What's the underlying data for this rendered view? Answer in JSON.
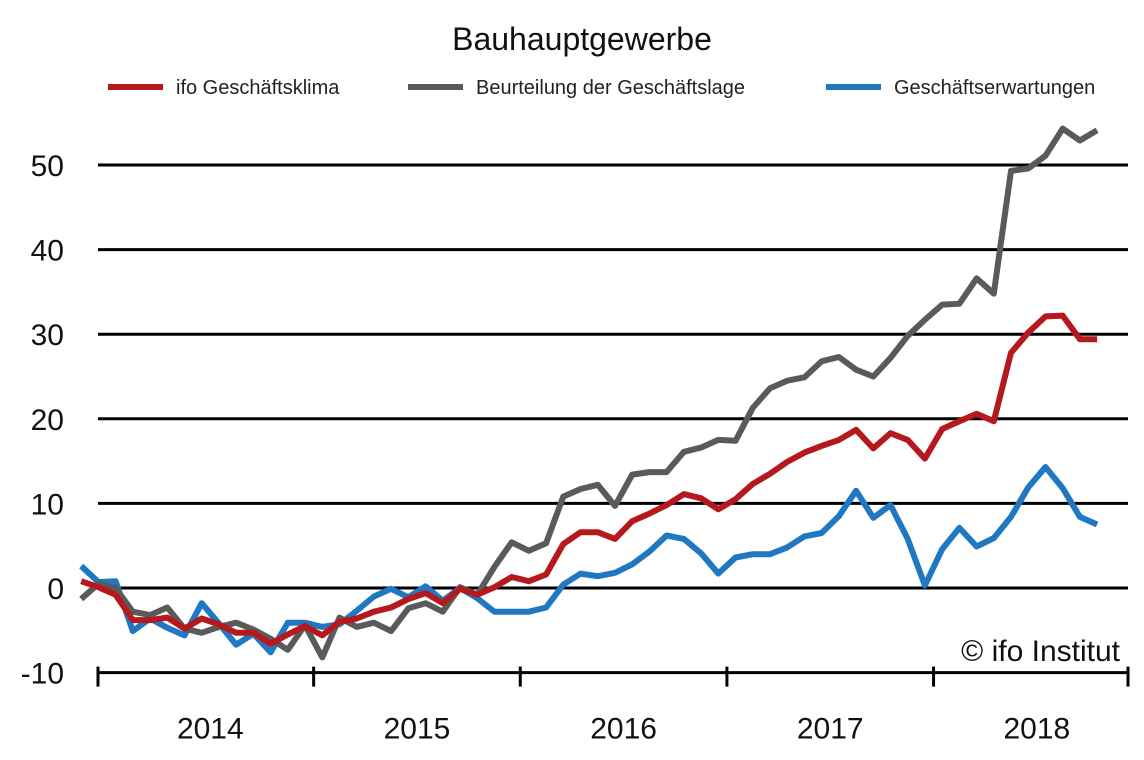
{
  "chart_data": {
    "type": "line",
    "title": "Bauhauptgewerbe",
    "credit": "© ifo Institut",
    "ylim": [
      -10,
      55
    ],
    "yticks": [
      "50",
      "40",
      "30",
      "20",
      "10",
      "0",
      "-10"
    ],
    "xticks": [
      "2014",
      "2015",
      "2016",
      "2017",
      "2018"
    ],
    "grid": true,
    "legend_position": "top",
    "x_start": "2013-11",
    "x_end": "2018-08",
    "colors": {
      "klima": "#b5191e",
      "lage": "#5a5a5a",
      "erwartungen": "#1f78c1"
    },
    "series": [
      {
        "name": "ifo Geschäftsklima",
        "key": "klima",
        "values": [
          0.8,
          0.1,
          -0.8,
          -3.8,
          -3.8,
          -3.5,
          -4.8,
          -3.6,
          -4.3,
          -5.3,
          -5.3,
          -6.6,
          -5.5,
          -4.5,
          -5.6,
          -4.0,
          -3.6,
          -2.8,
          -2.3,
          -1.3,
          -0.6,
          -1.8,
          -0.1,
          -0.8,
          0.1,
          1.3,
          0.8,
          1.6,
          5.2,
          6.6,
          6.6,
          5.8,
          7.9,
          8.8,
          9.8,
          11.1,
          10.6,
          9.3,
          10.5,
          12.3,
          13.5,
          14.9,
          16.0,
          16.8,
          17.5,
          18.7,
          16.5,
          18.3,
          17.5,
          15.3,
          18.8,
          19.7,
          20.6,
          19.7,
          27.8,
          30.2,
          32.1,
          32.2,
          29.4,
          29.4
        ]
      },
      {
        "name": "Beurteilung der Geschäftslage",
        "key": "lage",
        "values": [
          -1.3,
          0.5,
          0.0,
          -2.8,
          -3.2,
          -2.3,
          -4.8,
          -5.3,
          -4.6,
          -4.1,
          -4.9,
          -6.0,
          -7.3,
          -4.4,
          -8.2,
          -3.5,
          -4.6,
          -4.1,
          -5.1,
          -2.4,
          -1.8,
          -2.8,
          0.1,
          -0.8,
          2.5,
          5.4,
          4.4,
          5.3,
          10.8,
          11.7,
          12.2,
          9.7,
          13.4,
          13.7,
          13.7,
          16.1,
          16.6,
          17.5,
          17.4,
          21.3,
          23.6,
          24.5,
          24.9,
          26.8,
          27.3,
          25.8,
          25.0,
          27.2,
          29.8,
          31.7,
          33.5,
          33.6,
          36.6,
          34.8,
          49.3,
          49.6,
          51.1,
          54.3,
          52.9,
          54.1
        ]
      },
      {
        "name": "Geschäftserwartungen",
        "key": "erwartungen",
        "values": [
          2.6,
          0.7,
          0.8,
          -5.1,
          -3.6,
          -4.7,
          -5.6,
          -1.8,
          -4.2,
          -6.7,
          -5.4,
          -7.6,
          -4.1,
          -4.1,
          -4.6,
          -4.3,
          -2.7,
          -1.0,
          -0.1,
          -1.1,
          0.2,
          -1.5,
          0.0,
          -1.2,
          -2.8,
          -2.8,
          -2.8,
          -2.3,
          0.4,
          1.7,
          1.4,
          1.8,
          2.8,
          4.3,
          6.2,
          5.8,
          4.1,
          1.7,
          3.6,
          4.0,
          4.0,
          4.8,
          6.1,
          6.5,
          8.5,
          11.5,
          8.3,
          9.8,
          5.8,
          0.3,
          4.6,
          7.1,
          4.9,
          5.9,
          8.4,
          11.9,
          14.3,
          11.8,
          8.4,
          7.5
        ]
      }
    ]
  }
}
